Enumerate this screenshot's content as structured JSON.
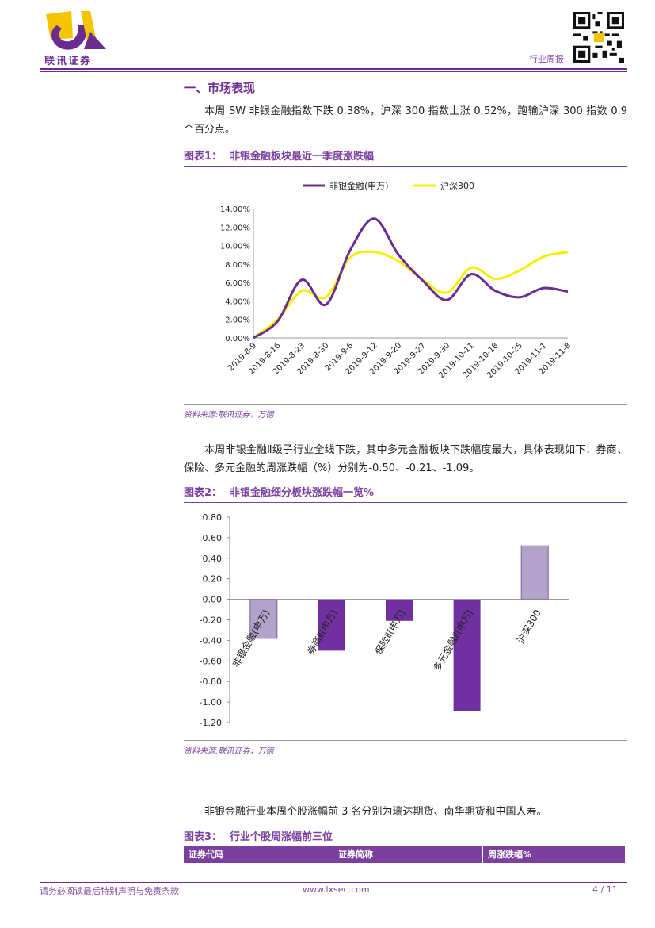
{
  "header": {
    "brand": "联讯证券",
    "report_type": "行业周报"
  },
  "section": {
    "title": "一、市场表现",
    "para1": "本周 SW 非银金融指数下跌 0.38%，沪深 300 指数上涨 0.52%，跑输沪深 300 指数 0.9 个百分点。",
    "para2": "本周非银金融Ⅱ级子行业全线下跌，其中多元金融板块下跌幅度最大，具体表现如下：券商、保险、多元金融的周涨跌幅（%）分别为-0.50、-0.21、-1.09。",
    "para3": "非银金融行业本周个股涨幅前 3 名分别为瑞达期货、南华期货和中国人寿。"
  },
  "figures": {
    "fig1": {
      "label": "图表1：",
      "title": "非银金融板块最近一季度涨跌幅",
      "source": "资料来源:联讯证券，万德"
    },
    "fig2": {
      "label": "图表2：",
      "title": "非银金融细分板块涨跌幅一览%",
      "source": "资料来源:联讯证券，万德"
    },
    "fig3": {
      "label": "图表3：",
      "title": "行业个股周涨幅前三位"
    }
  },
  "table": {
    "headers": [
      "证券代码",
      "证券简称",
      "周涨跌幅%"
    ]
  },
  "footer": {
    "disclaimer": "请务必阅读最后特别声明与免责条款",
    "website": "www.lxsec.com",
    "page": "4 / 11"
  },
  "colors": {
    "purple": "#6b2c91",
    "series1": "#6b2c91",
    "series2": "#f5f000",
    "bar_light": "#b3a2c9",
    "bar_dark": "#7030a0"
  },
  "chart_data": [
    {
      "type": "line",
      "x": [
        "2019-8-9",
        "2019-8-16",
        "2019-8-23",
        "2019-8-30",
        "2019-9-6",
        "2019-9-12",
        "2019-9-20",
        "2019-9-27",
        "2019-9-30",
        "2019-10-11",
        "2019-10-18",
        "2019-10-25",
        "2019-11-1",
        "2019-11-8"
      ],
      "series": [
        {
          "name": "非银金融(申万)",
          "values": [
            0.0,
            1.8,
            6.3,
            3.6,
            9.5,
            12.9,
            9.0,
            6.2,
            4.1,
            6.9,
            5.1,
            4.4,
            5.4,
            5.0
          ]
        },
        {
          "name": "沪深300",
          "values": [
            0.0,
            2.0,
            5.1,
            4.4,
            8.7,
            9.3,
            8.3,
            6.3,
            4.9,
            7.6,
            6.4,
            7.3,
            8.8,
            9.3
          ]
        }
      ],
      "ylim": [
        0,
        14
      ],
      "yticks": [
        "0.00%",
        "2.00%",
        "4.00%",
        "6.00%",
        "8.00%",
        "10.00%",
        "12.00%",
        "14.00%"
      ],
      "legend": "top-center"
    },
    {
      "type": "bar",
      "categories": [
        "非银金融(申万)",
        "券商Ⅱ(申万)",
        "保险Ⅱ(申万)",
        "多元金融Ⅱ(申万)",
        "沪深300"
      ],
      "values": [
        -0.38,
        -0.5,
        -0.21,
        -1.09,
        0.52
      ],
      "ylim": [
        -1.2,
        0.8
      ],
      "yticks": [
        "0.80",
        "0.60",
        "0.40",
        "0.20",
        "0.00",
        "-0.20",
        "-0.40",
        "-0.60",
        "-0.80",
        "-1.00",
        "-1.20"
      ]
    }
  ]
}
